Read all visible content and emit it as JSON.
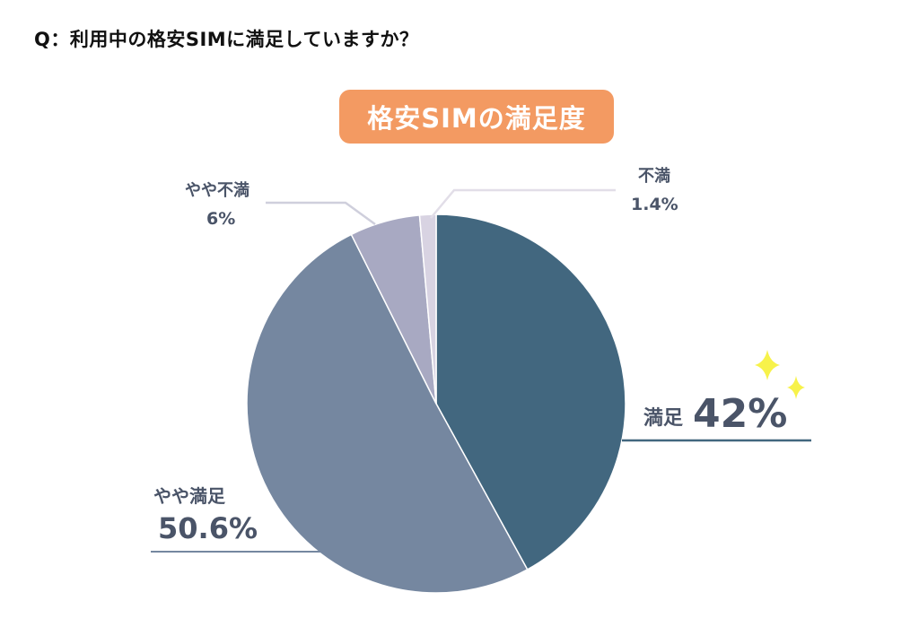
{
  "question": "Q：利用中の格安SIMに満足していますか？",
  "chart_data": {
    "type": "pie",
    "title": "格安SIMの満足度",
    "slices": [
      {
        "label": "満足",
        "value": 42,
        "value_label": "42%",
        "color": "#42677f"
      },
      {
        "label": "やや満足",
        "value": 50.6,
        "value_label": "50.6%",
        "color": "#7587a0"
      },
      {
        "label": "やや不満",
        "value": 6,
        "value_label": "6%",
        "color": "#a8a9c2"
      },
      {
        "label": "不満",
        "value": 1.4,
        "value_label": "1.4%",
        "color": "#d8d3e2"
      }
    ],
    "start": "12 o'clock",
    "direction": "clockwise"
  },
  "colors": {
    "title_badge": "#f39a62",
    "leader_line": "#42677f",
    "leader_line_light": "#cfcfdc",
    "sparkle": "#f7f24a",
    "label_text": "#4a5468"
  },
  "decoration": {
    "sparkle_icon": "sparkle-icon"
  }
}
